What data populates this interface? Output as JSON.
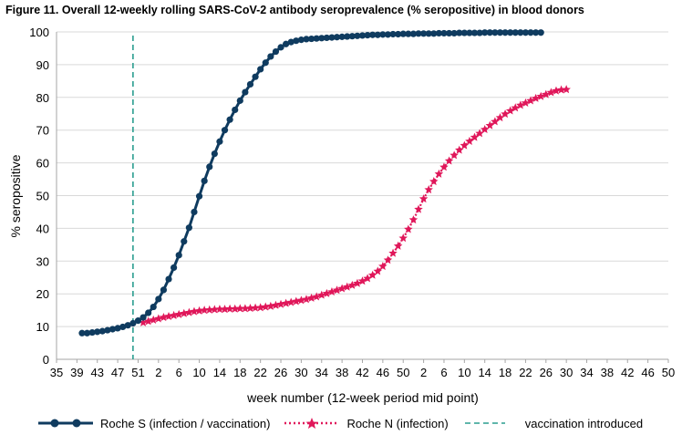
{
  "title": "Figure 11. Overall 12-weekly rolling SARS-CoV-2 antibody seroprevalence (% seropositive) in blood donors",
  "colors": {
    "roche_s": "#0f3b5f",
    "roche_n": "#e0175a",
    "vaccination": "#2a9d8f",
    "gridline": "#d9d9d9",
    "axis": "#a6a6a6"
  },
  "chart_data": {
    "type": "line",
    "title": "Figure 11. Overall 12-weekly rolling SARS-CoV-2 antibody seroprevalence (% seropositive) in blood donors",
    "xlabel": "week number  (12-week period mid point)",
    "ylabel": "% seropositive",
    "ylim": [
      0,
      100
    ],
    "yticks": [
      0,
      10,
      20,
      30,
      40,
      50,
      60,
      70,
      80,
      90,
      100
    ],
    "grid": "horizontal",
    "legend_position": "bottom",
    "x_tick_labels": [
      "35",
      "39",
      "43",
      "47",
      "51",
      "2",
      "6",
      "10",
      "14",
      "18",
      "22",
      "26",
      "30",
      "34",
      "38",
      "42",
      "46",
      "50",
      "2",
      "6",
      "10",
      "14",
      "18",
      "22",
      "26",
      "30",
      "34",
      "38",
      "42",
      "46",
      "50"
    ],
    "series": [
      {
        "name": "Roche S (infection / vaccination)",
        "style": "line-with-circle-markers",
        "color": "#0f3b5f",
        "x_week_start": "40 (2020)",
        "values": [
          8.0,
          8.0,
          8.2,
          8.4,
          8.6,
          8.9,
          9.2,
          9.5,
          9.9,
          10.4,
          11.0,
          11.8,
          12.8,
          14.2,
          16.0,
          18.4,
          21.2,
          24.5,
          28.0,
          31.8,
          36.0,
          40.2,
          45.0,
          49.8,
          54.5,
          58.8,
          62.8,
          66.5,
          70.0,
          73.2,
          76.2,
          79.0,
          81.6,
          84.0,
          86.3,
          88.6,
          90.6,
          92.5,
          94.0,
          95.3,
          96.3,
          96.9,
          97.3,
          97.6,
          97.8,
          97.9,
          98.0,
          98.1,
          98.2,
          98.3,
          98.4,
          98.5,
          98.6,
          98.7,
          98.8,
          98.9,
          99.0,
          99.1,
          99.1,
          99.2,
          99.2,
          99.3,
          99.3,
          99.4,
          99.4,
          99.4,
          99.5,
          99.5,
          99.5,
          99.5,
          99.6,
          99.6,
          99.6,
          99.6,
          99.7,
          99.7,
          99.7,
          99.7,
          99.7,
          99.8,
          99.8,
          99.8,
          99.8,
          99.8,
          99.8,
          99.8,
          99.8,
          99.8,
          99.8,
          99.8,
          99.8
        ]
      },
      {
        "name": "Roche N (infection)",
        "style": "dotted-line-with-star-markers",
        "color": "#e0175a",
        "x_week_start": "52 (2020)",
        "values": [
          11.2,
          11.6,
          12.0,
          12.4,
          12.8,
          13.1,
          13.4,
          13.7,
          14.0,
          14.3,
          14.6,
          14.8,
          15.0,
          15.1,
          15.2,
          15.3,
          15.3,
          15.4,
          15.4,
          15.5,
          15.5,
          15.6,
          15.7,
          15.8,
          16.0,
          16.2,
          16.5,
          16.8,
          17.1,
          17.4,
          17.7,
          18.0,
          18.3,
          18.7,
          19.1,
          19.6,
          20.1,
          20.6,
          21.1,
          21.6,
          22.1,
          22.6,
          23.2,
          23.9,
          24.7,
          25.7,
          26.9,
          28.4,
          30.3,
          32.4,
          34.6,
          37.0,
          39.7,
          42.6,
          45.8,
          49.0,
          51.8,
          54.3,
          56.6,
          58.7,
          60.6,
          62.3,
          63.9,
          65.3,
          66.6,
          67.8,
          69.0,
          70.2,
          71.4,
          72.6,
          73.8,
          74.9,
          75.9,
          76.8,
          77.6,
          78.3,
          79.0,
          79.7,
          80.3,
          80.9,
          81.5,
          82.0,
          82.3,
          82.4
        ]
      },
      {
        "name": "vaccination introduced",
        "style": "dashed-vertical-line",
        "color": "#2a9d8f",
        "x_week": "50 (2020)"
      }
    ]
  }
}
